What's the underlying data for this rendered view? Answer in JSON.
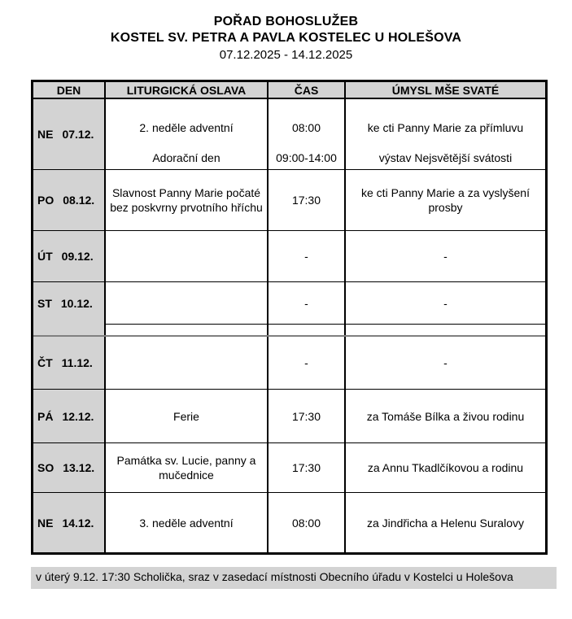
{
  "header": {
    "title": "POŘAD BOHOSLUŽEB",
    "subtitle": "KOSTEL SV. PETRA A PAVLA KOSTELEC U HOLEŠOVA",
    "date_range": "07.12.2025 - 14.12.2025"
  },
  "table": {
    "columns": [
      "DEN",
      "LITURGICKÁ OSLAVA",
      "ČAS",
      "ÚMYSL MŠE SVATÉ"
    ],
    "rows": [
      {
        "day": "NE",
        "date": "07.12.",
        "main": {
          "feast": "2. neděle adventní",
          "time": "08:00",
          "intention": "ke cti Panny Marie za přímluvu"
        },
        "secondary": {
          "feast": "Adorační den",
          "time": "09:00-14:00",
          "intention": "výstav Nejsvětější svátosti"
        }
      },
      {
        "day": "PO",
        "date": "08.12.",
        "main": {
          "feast": "Slavnost Panny Marie počaté bez poskvrny prvotního hříchu",
          "time": "17:30",
          "intention": "ke cti Panny Marie a za vyslyšení prosby"
        }
      },
      {
        "day": "ÚT",
        "date": "09.12.",
        "main": {
          "feast": "",
          "time": "-",
          "intention": "-"
        }
      },
      {
        "day": "ST",
        "date": "10.12.",
        "main": {
          "feast": "",
          "time": "-",
          "intention": "-"
        }
      },
      {
        "day": "ČT",
        "date": "11.12.",
        "main": {
          "feast": "",
          "time": "-",
          "intention": "-"
        }
      },
      {
        "day": "PÁ",
        "date": "12.12.",
        "main": {
          "feast": "Ferie",
          "time": "17:30",
          "intention": "za Tomáše Bílka a živou rodinu"
        }
      },
      {
        "day": "SO",
        "date": "13.12.",
        "main": {
          "feast": "Památka sv. Lucie, panny a mučednice",
          "time": "17:30",
          "intention": "za Annu Tkadlčíkovou a rodinu"
        }
      },
      {
        "day": "NE",
        "date": "14.12.",
        "main": {
          "feast": "3. neděle adventní",
          "time": "08:00",
          "intention": "za Jindřicha a Helenu Suralovy"
        }
      }
    ]
  },
  "footer": {
    "note": "v úterý 9.12. 17:30 Scholička, sraz v zasedací místnosti Obecního úřadu v Kostelci u Holešova"
  },
  "colors": {
    "cell_gray": "#d3d3d3",
    "divider_gray": "#808080",
    "border_black": "#000000"
  }
}
